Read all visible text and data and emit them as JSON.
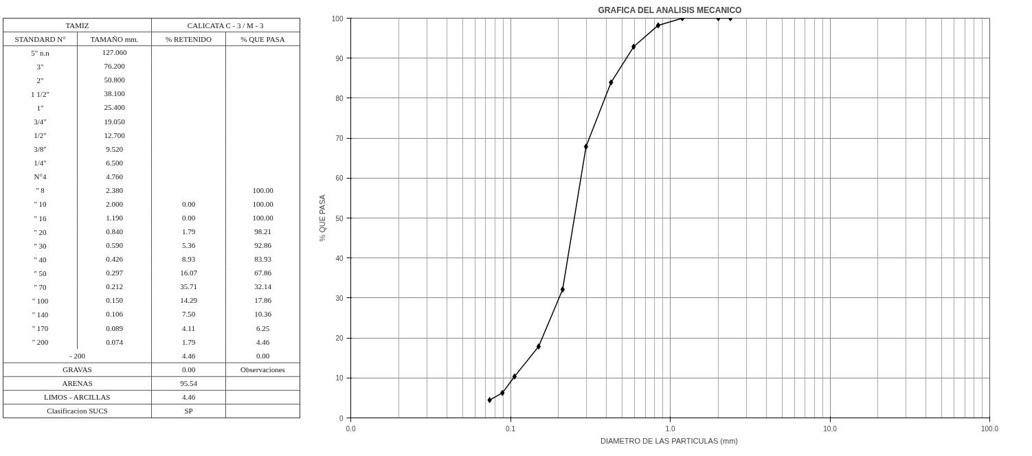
{
  "chart_data": [
    {
      "type": "other",
      "annotations": [
        "TAMIZ",
        null,
        "CALICATA C - 3 / M - 3",
        null,
        "STANDARD N°",
        "TAMAÑO mm.",
        "% RETENIDO",
        "% QUE PASA",
        "5\" n.n",
        "127.060",
        null,
        null,
        "3\"",
        "76.200",
        null,
        null,
        "2\"",
        "50.800",
        null,
        null,
        "1 1/2\"",
        "38.100",
        null,
        null,
        "1\"",
        "25.400",
        null,
        null,
        "3/4\"",
        "19.050",
        null,
        null,
        "1/2\"",
        "12.700",
        null,
        null,
        "3/8\"",
        "9.520",
        null,
        null,
        "1/4\"",
        "6.500",
        null,
        null,
        "N°4",
        "4.760",
        null,
        null,
        "\" 8",
        "2.380",
        null,
        "100.00",
        "\" 10",
        "2.000",
        "0.00",
        "100.00",
        "\" 16",
        "1.190",
        "0.00",
        "100.00",
        "\" 20",
        "0.840",
        "1.79",
        "98.21",
        "\" 30",
        "0.590",
        "5.36",
        "92.86",
        "\" 40",
        "0.426",
        "8.93",
        "83.93",
        "\" 50",
        "0.297",
        "16.07",
        "67.86",
        "\" 70",
        "0.212",
        "35.71",
        "32.14",
        "\" 100",
        "0.150",
        "14.29",
        "17.86",
        "\" 140",
        "0.106",
        "7.50",
        "10.36",
        "\" 170",
        "0.089",
        "4.11",
        "6.25",
        "\" 200",
        "0.074",
        "1.79",
        "4.46",
        "- 200",
        null,
        "4.46",
        "0.00",
        "GRAVAS",
        null,
        "0.00",
        "Observaciones",
        "ARENAS",
        null,
        "95.54",
        null,
        "LIMOS - ARCILLAS",
        null,
        "4.46",
        null,
        "Clasificacion SUCS",
        null,
        "SP",
        null
      ]
    },
    {
      "type": "line",
      "title": "GRAFICA DEL ANALISIS MECANICO",
      "xlabel": "DIAMETRO DE LAS PARTICULAS  (mm)",
      "ylabel": "% QUE PASA",
      "x": [
        0.074,
        0.089,
        0.106,
        0.15,
        0.212,
        0.297,
        0.426,
        0.59,
        0.84,
        1.19,
        2.0,
        2.38
      ],
      "values": [
        4.46,
        6.25,
        10.36,
        17.86,
        32.14,
        67.86,
        83.93,
        92.86,
        98.21,
        100,
        100,
        100
      ],
      "color": "#000000",
      "marker": "diamond",
      "log": "x",
      "grid": true,
      "xlim": [
        0.01,
        100
      ],
      "xticks": [
        {
          "value": 0.01,
          "label": "0.0"
        },
        {
          "value": 0.1,
          "label": "0.1"
        },
        {
          "value": 1,
          "label": "1.0"
        },
        {
          "value": 10,
          "label": "10.0"
        },
        {
          "value": 100,
          "label": "100.0"
        }
      ],
      "ylim": [
        0,
        100
      ],
      "yticks": [
        0,
        10,
        20,
        30,
        40,
        50,
        60,
        70,
        80,
        90,
        100
      ]
    }
  ]
}
